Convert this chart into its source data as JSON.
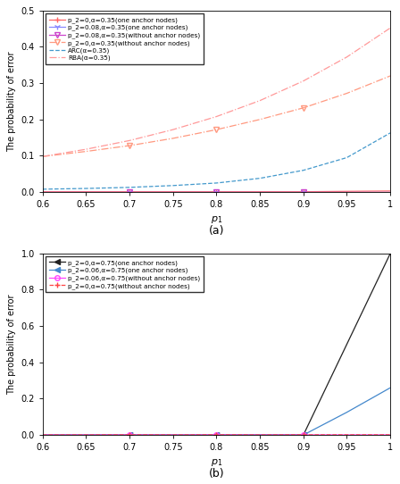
{
  "fig_width": 4.48,
  "fig_height": 5.42,
  "dpi": 100,
  "subplot_a": {
    "x": [
      0.6,
      0.65,
      0.7,
      0.75,
      0.8,
      0.85,
      0.9,
      0.95,
      1.0
    ],
    "xlim": [
      0.6,
      1.0
    ],
    "ylim": [
      0,
      0.5
    ],
    "yticks": [
      0,
      0.1,
      0.2,
      0.3,
      0.4,
      0.5
    ],
    "xticks": [
      0.6,
      0.65,
      0.7,
      0.75,
      0.8,
      0.85,
      0.9,
      0.95,
      1.0
    ],
    "xlabel": "p_1",
    "ylabel": "The probability of error",
    "label_a": "(a)",
    "lines": [
      {
        "label": "p_2=0,α=0.35(one anchor nodes)",
        "color": "#FF6666",
        "linestyle": "-",
        "marker": "+",
        "markersize": 5,
        "markevery": [
          2,
          4,
          6
        ],
        "markerfacecolor": "#FF6666",
        "y": [
          0.001,
          0.001,
          0.001,
          0.001,
          0.001,
          0.001,
          0.001,
          0.002,
          0.003
        ]
      },
      {
        "label": "p_2=0.08,α=0.35(one anchor nodes)",
        "color": "#8888FF",
        "linestyle": "-",
        "marker": "1",
        "markersize": 5,
        "markevery": [
          2,
          4,
          6
        ],
        "markerfacecolor": "#8888FF",
        "y": [
          0.001,
          0.001,
          0.001,
          0.001,
          0.001,
          0.001,
          0.001,
          0.001,
          0.001
        ]
      },
      {
        "label": "p_2=0.08,α=0.35(without anchor nodes)",
        "color": "#CC44CC",
        "linestyle": "-",
        "marker": "v",
        "markersize": 4,
        "markevery": [
          2,
          4,
          6
        ],
        "markerfacecolor": "none",
        "y": [
          0.001,
          0.001,
          0.001,
          0.001,
          0.001,
          0.001,
          0.001,
          0.001,
          0.001
        ]
      },
      {
        "label": "p_2=0,α=0.35(without anchor nodes)",
        "color": "#FF9980",
        "linestyle": "-.",
        "marker": "v",
        "markersize": 4,
        "markevery": [
          2,
          4,
          6
        ],
        "markerfacecolor": "none",
        "y": [
          0.098,
          0.112,
          0.128,
          0.148,
          0.172,
          0.2,
          0.232,
          0.272,
          0.32
        ]
      },
      {
        "label": "ARC(α=0.35)",
        "color": "#4499CC",
        "linestyle": "--",
        "marker": null,
        "markersize": 0,
        "markevery": [],
        "markerfacecolor": null,
        "y": [
          0.008,
          0.01,
          0.013,
          0.018,
          0.025,
          0.038,
          0.06,
          0.095,
          0.163
        ]
      },
      {
        "label": "RBA(α=0.35)",
        "color": "#FF9999",
        "linestyle": "-.",
        "marker": null,
        "markersize": 0,
        "markevery": [],
        "markerfacecolor": null,
        "y": [
          0.098,
          0.118,
          0.142,
          0.172,
          0.208,
          0.252,
          0.306,
          0.372,
          0.452
        ]
      }
    ]
  },
  "subplot_b": {
    "x": [
      0.6,
      0.65,
      0.7,
      0.75,
      0.8,
      0.85,
      0.9,
      0.95,
      1.0
    ],
    "xlim": [
      0.6,
      1.0
    ],
    "ylim": [
      0,
      1.0
    ],
    "yticks": [
      0,
      0.2,
      0.4,
      0.6,
      0.8,
      1.0
    ],
    "xticks": [
      0.6,
      0.65,
      0.7,
      0.75,
      0.8,
      0.85,
      0.9,
      0.95,
      1.0
    ],
    "xlabel": "p_1",
    "ylabel": "The probability of error",
    "label_b": "(b)",
    "lines": [
      {
        "label": "p_2=0,α=0.75(one anchor nodes)",
        "color": "#222222",
        "linestyle": "-",
        "marker": "<",
        "markersize": 4,
        "markevery": [
          2,
          4,
          6
        ],
        "markerfacecolor": "#222222",
        "y": [
          0.0,
          0.0,
          0.0,
          0.0,
          0.0,
          0.0,
          0.0,
          0.5,
          1.0
        ]
      },
      {
        "label": "p_2=0.06,α=0.75(one anchor nodes)",
        "color": "#4488CC",
        "linestyle": "-",
        "marker": "<",
        "markersize": 4,
        "markevery": [
          2,
          4,
          6
        ],
        "markerfacecolor": "#4488CC",
        "y": [
          0.0,
          0.0,
          0.0,
          0.0,
          0.0,
          0.0,
          0.0,
          0.125,
          0.26
        ]
      },
      {
        "label": "p_2=0.06,α=0.75(without anchor nodes)",
        "color": "#FF44FF",
        "linestyle": "-",
        "marker": "o",
        "markersize": 4,
        "markevery": [
          2,
          4,
          6
        ],
        "markerfacecolor": "none",
        "y": [
          0.0,
          0.0,
          0.0005,
          0.0,
          0.0005,
          0.0,
          0.0005,
          0.0005,
          0.0005
        ]
      },
      {
        "label": "p_2=0,α=0.75(without anchor nodes)",
        "color": "#FF4444",
        "linestyle": "--",
        "marker": "+",
        "markersize": 5,
        "markevery": [
          2,
          4,
          6
        ],
        "markerfacecolor": "#FF4444",
        "y": [
          0.0,
          0.0,
          0.0005,
          0.0,
          0.0005,
          0.0,
          0.0005,
          0.0005,
          0.0005
        ]
      }
    ]
  }
}
